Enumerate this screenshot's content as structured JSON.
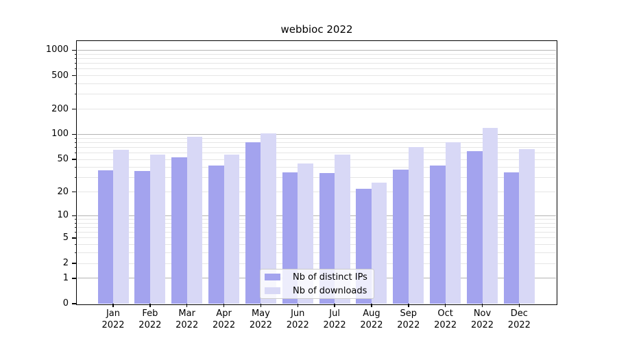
{
  "title": "webbioc 2022",
  "chart_data": {
    "type": "bar",
    "title": "webbioc 2022",
    "categories": [
      "Jan 2022",
      "Feb 2022",
      "Mar 2022",
      "Apr 2022",
      "May 2022",
      "Jun 2022",
      "Jul 2022",
      "Aug 2022",
      "Sep 2022",
      "Oct 2022",
      "Nov 2022",
      "Dec 2022"
    ],
    "month_labels": [
      "Jan",
      "Feb",
      "Mar",
      "Apr",
      "May",
      "Jun",
      "Jul",
      "Aug",
      "Sep",
      "Oct",
      "Nov",
      "Dec"
    ],
    "year_label": "2022",
    "series": [
      {
        "name": "Nb of distinct IPs",
        "color": "#a3a3ee",
        "values": [
          37,
          36,
          53,
          42,
          80,
          35,
          34,
          22,
          38,
          42,
          63,
          35
        ]
      },
      {
        "name": "Nb of downloads",
        "color": "#d8d8f6",
        "values": [
          65,
          57,
          94,
          57,
          102,
          45,
          57,
          26,
          71,
          80,
          120,
          66
        ]
      }
    ],
    "yscale": "log10(value+1)",
    "ylim": [
      0,
      1260
    ],
    "ytick_values": [
      0,
      1,
      2,
      5,
      10,
      20,
      50,
      100,
      200,
      500,
      1000
    ],
    "ytick_labels": [
      "0",
      "1",
      "2",
      "5",
      "10",
      "20",
      "50",
      "100",
      "200",
      "500",
      "1000"
    ],
    "grid": "horizontal major and minor",
    "legend_position": "lower center",
    "xlabel": "",
    "ylabel": ""
  },
  "colors": {
    "background": "#ffffff",
    "bar_ips": "#a3a3ee",
    "bar_downloads": "#d8d8f6",
    "major_grid": "#b3b3b3",
    "minor_grid": "#e5e5e5",
    "axis": "#000000",
    "text": "#000000",
    "legend_border": "#cccccc"
  }
}
